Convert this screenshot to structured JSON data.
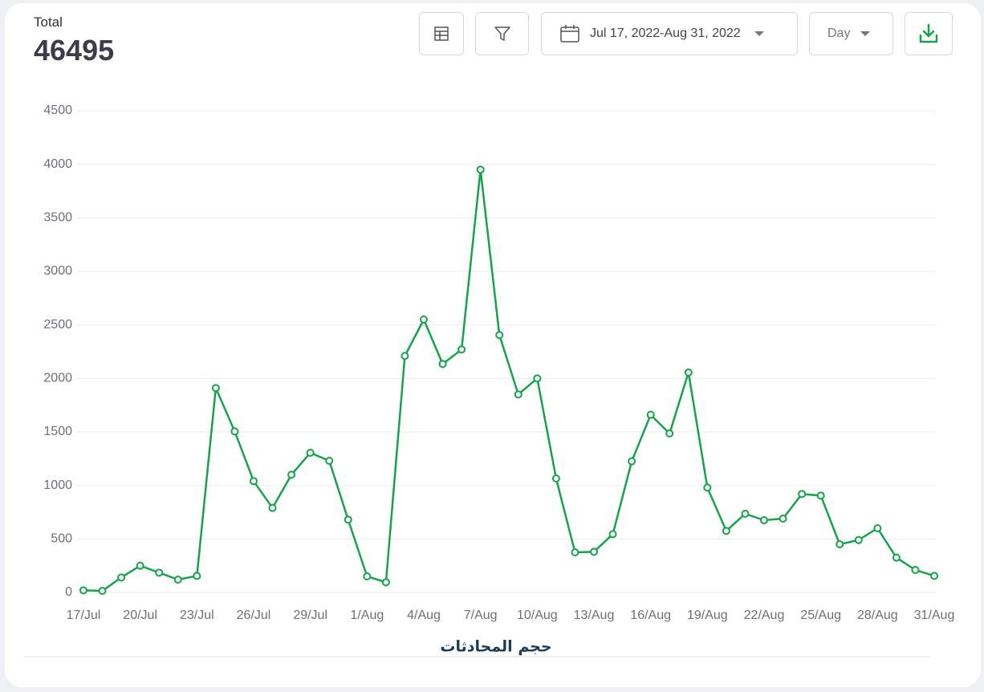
{
  "header": {
    "label": "Total",
    "total": 46495
  },
  "controls": {
    "date_range": "Jul 17, 2022-Aug 31, 2022",
    "granularity": "Day"
  },
  "chart_data": {
    "type": "line",
    "title": "حجم المحادثات",
    "categories": [
      "17/Jul",
      null,
      null,
      "20/Jul",
      null,
      null,
      "23/Jul",
      null,
      null,
      "26/Jul",
      null,
      null,
      "29/Jul",
      null,
      null,
      "1/Aug",
      null,
      null,
      "4/Aug",
      null,
      null,
      "7/Aug",
      null,
      null,
      "10/Aug",
      null,
      null,
      "13/Aug",
      null,
      null,
      "16/Aug",
      null,
      null,
      "19/Aug",
      null,
      null,
      "22/Aug",
      null,
      null,
      "25/Aug",
      null,
      null,
      "28/Aug",
      null,
      null,
      "31/Aug"
    ],
    "series": [
      {
        "name": "Conversations",
        "color": "#16a34a",
        "values": [
          20,
          15,
          140,
          250,
          185,
          120,
          155,
          1910,
          1505,
          1040,
          790,
          1100,
          1305,
          1230,
          680,
          150,
          95,
          2210,
          2550,
          2135,
          2270,
          3950,
          2405,
          1850,
          2000,
          1065,
          375,
          380,
          545,
          1225,
          1660,
          1485,
          2055,
          980,
          575,
          735,
          675,
          690,
          920,
          905,
          450,
          490,
          600,
          325,
          210,
          155
        ]
      }
    ],
    "ylim": [
      0,
      4500
    ],
    "yticks": [
      0,
      500,
      1000,
      1500,
      2000,
      2500,
      3000,
      3500,
      4000,
      4500
    ],
    "grid": true
  }
}
